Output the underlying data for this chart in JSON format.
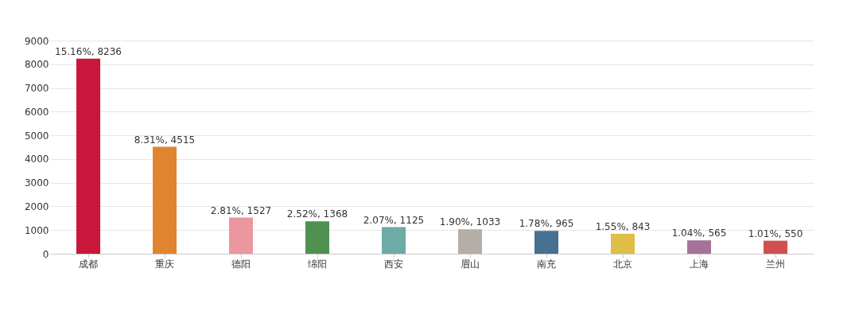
{
  "chart_data": {
    "type": "bar",
    "categories": [
      "成都",
      "重庆",
      "德阳",
      "绵阳",
      "西安",
      "眉山",
      "南充",
      "北京",
      "上海",
      "兰州"
    ],
    "values": [
      8236,
      4515,
      1527,
      1368,
      1125,
      1033,
      965,
      843,
      565,
      550
    ],
    "value_labels": [
      "15.16%, 8236",
      "8.31%, 4515",
      "2.81%, 1527",
      "2.52%, 1368",
      "2.07%, 1125",
      "1.90%, 1033",
      "1.78%, 965",
      "1.55%, 843",
      "1.04%, 565",
      "1.01%, 550"
    ],
    "colors": [
      "#c8173a",
      "#e08430",
      "#ec96a0",
      "#4f9150",
      "#6eaaa6",
      "#b5aea6",
      "#46708f",
      "#dfbe48",
      "#a5739a",
      "#d05050"
    ],
    "ylim": [
      0,
      9000
    ],
    "yticks": [
      0,
      1000,
      2000,
      3000,
      4000,
      5000,
      6000,
      7000,
      8000,
      9000
    ],
    "grid": "y",
    "legend": false
  }
}
